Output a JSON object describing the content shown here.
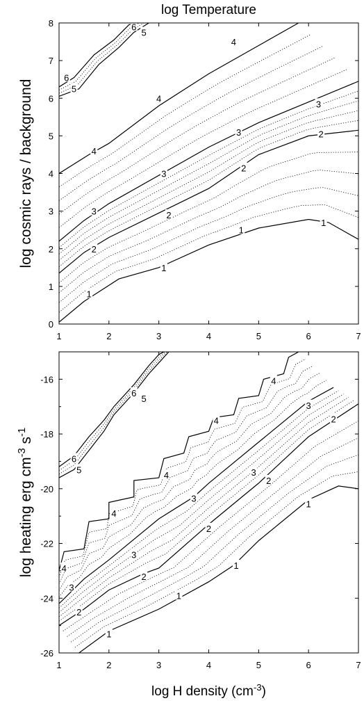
{
  "chart_data": [
    {
      "type": "contour",
      "title": "log Temperature",
      "xlabel": "",
      "ylabel": "log cosmic rays / background",
      "xlim": [
        1,
        7
      ],
      "ylim": [
        0,
        8
      ],
      "xticks": [
        "1",
        "2",
        "3",
        "4",
        "5",
        "6",
        "7"
      ],
      "yticks": [
        "0",
        "1",
        "2",
        "3",
        "4",
        "5",
        "6",
        "7",
        "8"
      ],
      "contours": [
        {
          "level": "1",
          "points": [
            [
              1.0,
              0.05
            ],
            [
              1.5,
              0.6
            ],
            [
              2.2,
              1.2
            ],
            [
              3.0,
              1.5
            ],
            [
              4.0,
              2.1
            ],
            [
              5.0,
              2.55
            ],
            [
              6.0,
              2.78
            ],
            [
              6.4,
              2.7
            ],
            [
              7.0,
              2.25
            ]
          ],
          "labels": [
            [
              1.6,
              0.8
            ],
            [
              3.1,
              1.5
            ],
            [
              4.65,
              2.5
            ],
            [
              6.3,
              2.7
            ]
          ]
        },
        {
          "level": "2",
          "points": [
            [
              1.0,
              1.35
            ],
            [
              1.5,
              1.9
            ],
            [
              2.0,
              2.3
            ],
            [
              3.0,
              2.95
            ],
            [
              4.0,
              3.6
            ],
            [
              5.0,
              4.5
            ],
            [
              6.0,
              5.0
            ],
            [
              7.0,
              5.15
            ]
          ],
          "labels": [
            [
              1.7,
              2.0
            ],
            [
              3.2,
              2.9
            ],
            [
              4.7,
              4.15
            ],
            [
              6.25,
              5.05
            ]
          ]
        },
        {
          "level": "3",
          "points": [
            [
              1.0,
              2.2
            ],
            [
              1.5,
              2.75
            ],
            [
              2.0,
              3.2
            ],
            [
              3.0,
              3.95
            ],
            [
              4.0,
              4.7
            ],
            [
              5.0,
              5.35
            ],
            [
              6.0,
              5.9
            ],
            [
              7.0,
              6.45
            ]
          ],
          "labels": [
            [
              1.7,
              3.0
            ],
            [
              3.1,
              4.0
            ],
            [
              4.6,
              5.1
            ],
            [
              6.2,
              5.85
            ]
          ]
        },
        {
          "level": "4",
          "points": [
            [
              1.0,
              4.0
            ],
            [
              1.6,
              4.5
            ],
            [
              2.0,
              4.8
            ],
            [
              3.0,
              5.8
            ],
            [
              4.0,
              6.65
            ],
            [
              5.0,
              7.4
            ],
            [
              5.8,
              8.0
            ]
          ],
          "labels": [
            [
              1.7,
              4.6
            ],
            [
              3.0,
              6.0
            ],
            [
              4.5,
              7.5
            ]
          ]
        },
        {
          "level": "5",
          "points": [
            [
              1.0,
              6.05
            ],
            [
              1.4,
              6.25
            ],
            [
              1.8,
              6.9
            ],
            [
              2.2,
              7.35
            ],
            [
              2.5,
              7.75
            ],
            [
              2.8,
              8.0
            ]
          ],
          "labels": [
            [
              1.3,
              6.25
            ],
            [
              2.7,
              7.75
            ]
          ]
        },
        {
          "level": "6",
          "points": [
            [
              1.0,
              6.3
            ],
            [
              1.3,
              6.55
            ],
            [
              1.7,
              7.15
            ],
            [
              2.1,
              7.55
            ],
            [
              2.4,
              7.95
            ],
            [
              2.5,
              8.0
            ]
          ],
          "labels": [
            [
              1.15,
              6.55
            ],
            [
              2.5,
              7.9
            ]
          ]
        }
      ]
    },
    {
      "type": "contour",
      "title": "",
      "xlabel": "log H density (cm-3)",
      "ylabel": "log heating erg cm-3 s-1",
      "xlim": [
        1,
        7
      ],
      "ylim": [
        -26,
        -15
      ],
      "xticks": [
        "1",
        "2",
        "3",
        "4",
        "5",
        "6",
        "7"
      ],
      "yticks": [
        "-26",
        "-24",
        "-22",
        "-20",
        "-18",
        "-16"
      ],
      "contours": [
        {
          "level": "1",
          "points": [
            [
              1.4,
              -26.0
            ],
            [
              2.0,
              -25.2
            ],
            [
              3.0,
              -24.4
            ],
            [
              4.0,
              -23.4
            ],
            [
              4.5,
              -22.8
            ],
            [
              5.0,
              -21.9
            ],
            [
              6.0,
              -20.4
            ],
            [
              6.6,
              -19.9
            ],
            [
              7.0,
              -20.0
            ]
          ],
          "labels": [
            [
              2.0,
              -25.3
            ],
            [
              3.4,
              -23.9
            ],
            [
              4.55,
              -22.8
            ],
            [
              6.0,
              -20.55
            ]
          ]
        },
        {
          "level": "2",
          "points": [
            [
              1.0,
              -25.0
            ],
            [
              1.5,
              -24.4
            ],
            [
              2.0,
              -23.7
            ],
            [
              2.7,
              -23.1
            ],
            [
              3.0,
              -22.9
            ],
            [
              4.0,
              -21.3
            ],
            [
              5.0,
              -19.8
            ],
            [
              6.0,
              -18.1
            ],
            [
              7.0,
              -16.9
            ]
          ],
          "labels": [
            [
              1.4,
              -24.5
            ],
            [
              2.7,
              -23.2
            ],
            [
              4.0,
              -21.45
            ],
            [
              5.2,
              -19.7
            ],
            [
              6.5,
              -17.45
            ]
          ]
        },
        {
          "level": "3",
          "points": [
            [
              1.0,
              -24.2
            ],
            [
              1.5,
              -23.3
            ],
            [
              2.0,
              -22.6
            ],
            [
              3.0,
              -21.1
            ],
            [
              3.7,
              -20.3
            ],
            [
              4.0,
              -19.8
            ],
            [
              5.0,
              -18.3
            ],
            [
              6.0,
              -16.8
            ],
            [
              6.5,
              -16.3
            ]
          ],
          "labels": [
            [
              1.25,
              -23.6
            ],
            [
              2.5,
              -22.4
            ],
            [
              3.7,
              -20.35
            ],
            [
              4.9,
              -19.4
            ],
            [
              6.0,
              -16.95
            ]
          ]
        },
        {
          "level": "4",
          "points": [
            [
              1.0,
              -23.0
            ],
            [
              1.1,
              -22.3
            ],
            [
              1.5,
              -22.2
            ],
            [
              1.6,
              -21.2
            ],
            [
              2.0,
              -21.1
            ],
            [
              2.0,
              -20.5
            ],
            [
              2.5,
              -20.3
            ],
            [
              2.5,
              -19.7
            ],
            [
              3.0,
              -19.6
            ],
            [
              3.1,
              -18.9
            ],
            [
              3.5,
              -18.7
            ],
            [
              3.6,
              -18.1
            ],
            [
              4.0,
              -17.9
            ],
            [
              4.1,
              -17.4
            ],
            [
              4.5,
              -17.3
            ],
            [
              4.6,
              -16.7
            ],
            [
              5.0,
              -16.6
            ],
            [
              5.1,
              -16.0
            ],
            [
              5.5,
              -15.8
            ],
            [
              5.6,
              -15.2
            ],
            [
              5.8,
              -15.0
            ]
          ],
          "labels": [
            [
              1.1,
              -22.9
            ],
            [
              2.1,
              -20.9
            ],
            [
              3.15,
              -19.5
            ],
            [
              4.15,
              -17.5
            ],
            [
              5.3,
              -16.05
            ]
          ]
        },
        {
          "level": "5",
          "points": [
            [
              1.0,
              -19.6
            ],
            [
              1.3,
              -19.3
            ],
            [
              1.6,
              -18.6
            ],
            [
              1.9,
              -17.9
            ],
            [
              2.1,
              -17.3
            ],
            [
              2.5,
              -16.5
            ],
            [
              2.8,
              -15.8
            ],
            [
              3.0,
              -15.4
            ],
            [
              3.2,
              -15.0
            ]
          ],
          "labels": [
            [
              1.4,
              -19.3
            ],
            [
              2.7,
              -16.7
            ]
          ]
        },
        {
          "level": "6",
          "points": [
            [
              1.0,
              -19.2
            ],
            [
              1.3,
              -18.8
            ],
            [
              1.6,
              -18.1
            ],
            [
              1.9,
              -17.5
            ],
            [
              2.1,
              -17.0
            ],
            [
              2.5,
              -16.2
            ],
            [
              2.8,
              -15.5
            ],
            [
              3.0,
              -15.1
            ],
            [
              3.1,
              -15.0
            ]
          ],
          "labels": [
            [
              1.3,
              -18.9
            ],
            [
              2.5,
              -16.5
            ]
          ]
        }
      ]
    }
  ]
}
